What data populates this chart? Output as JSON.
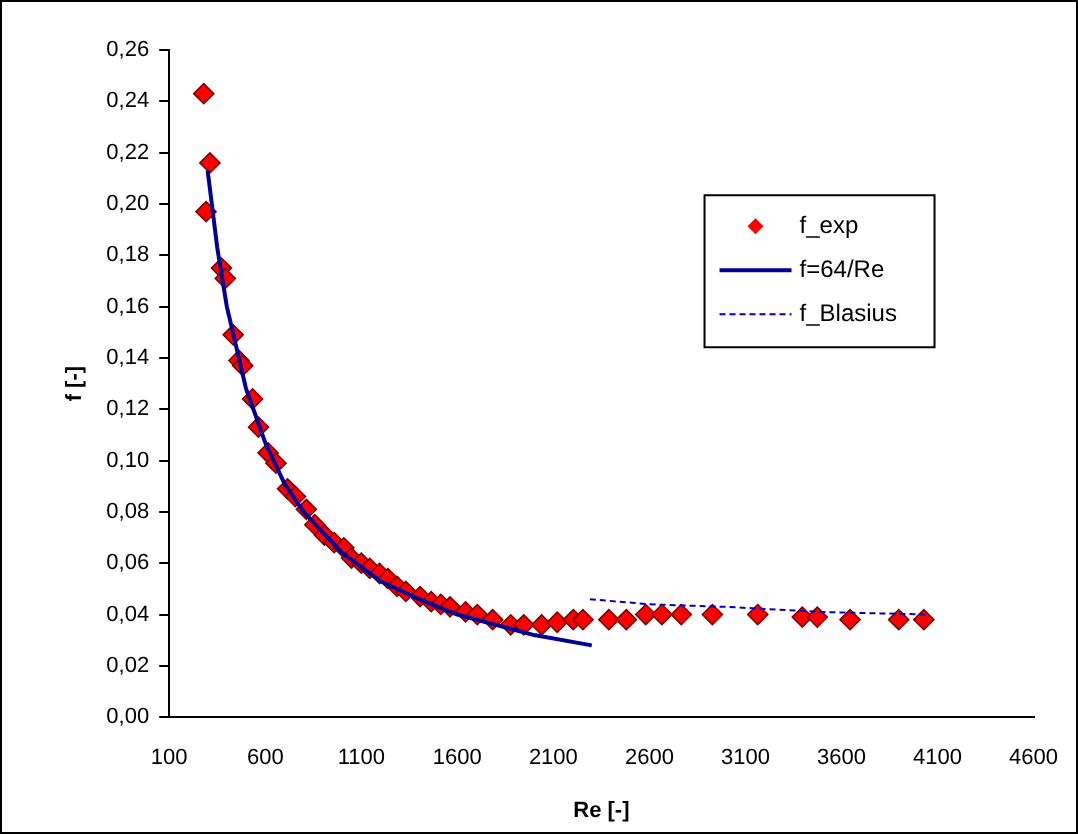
{
  "chart_data": {
    "type": "scatter",
    "xlabel": "Re [-]",
    "ylabel": "f [-]",
    "xlim": [
      100,
      4600
    ],
    "xticks": [
      100,
      600,
      1100,
      1600,
      2100,
      2600,
      3100,
      3600,
      4100,
      4600
    ],
    "ylim": [
      0,
      0.26
    ],
    "yticks": [
      {
        "value": 0,
        "label": "0,00"
      },
      {
        "value": 0.02,
        "label": "0,02"
      },
      {
        "value": 0.04,
        "label": "0,04"
      },
      {
        "value": 0.06,
        "label": "0,06"
      },
      {
        "value": 0.08,
        "label": "0,08"
      },
      {
        "value": 0.1,
        "label": "0,10"
      },
      {
        "value": 0.12,
        "label": "0,12"
      },
      {
        "value": 0.14,
        "label": "0,14"
      },
      {
        "value": 0.16,
        "label": "0,16"
      },
      {
        "value": 0.18,
        "label": "0,18"
      },
      {
        "value": 0.2,
        "label": "0,20"
      },
      {
        "value": 0.22,
        "label": "0,22"
      },
      {
        "value": 0.24,
        "label": "0,24"
      },
      {
        "value": 0.26,
        "label": "0,26"
      }
    ],
    "grid": false,
    "legend": "right",
    "series": [
      {
        "name": "f_exp",
        "type": "scatter",
        "marker": "diamond",
        "color": "#ff0000",
        "x": [
          280,
          292,
          312,
          372,
          392,
          433,
          463,
          483,
          534,
          565,
          615,
          656,
          716,
          757,
          814,
          858,
          908,
          959,
          1009,
          1049,
          1100,
          1144,
          1195,
          1239,
          1286,
          1332,
          1406,
          1464,
          1514,
          1562,
          1643,
          1704,
          1784,
          1878,
          1946,
          2039,
          2120,
          2204,
          2254,
          2389,
          2480,
          2581,
          2665,
          2766,
          2928,
          3164,
          3396,
          3474,
          3645,
          3898,
          4029
        ],
        "values": [
          0.243,
          0.197,
          0.216,
          0.175,
          0.171,
          0.149,
          0.139,
          0.137,
          0.124,
          0.113,
          0.103,
          0.099,
          0.089,
          0.086,
          0.081,
          0.075,
          0.071,
          0.068,
          0.066,
          0.062,
          0.06,
          0.058,
          0.056,
          0.054,
          0.051,
          0.049,
          0.047,
          0.045,
          0.044,
          0.043,
          0.041,
          0.04,
          0.038,
          0.036,
          0.036,
          0.036,
          0.037,
          0.038,
          0.038,
          0.038,
          0.038,
          0.04,
          0.04,
          0.04,
          0.04,
          0.04,
          0.039,
          0.039,
          0.038,
          0.038,
          0.038
        ]
      },
      {
        "name": "f=64/Re",
        "type": "line",
        "line_style": "solid",
        "marker": "none",
        "color": "#000099",
        "x": [
          300,
          350,
          400,
          500,
          600,
          700,
          800,
          1000,
          1200,
          1400,
          1600,
          1800,
          2000,
          2300
        ],
        "values": [
          0.213,
          0.183,
          0.16,
          0.128,
          0.107,
          0.091,
          0.08,
          0.064,
          0.053,
          0.046,
          0.04,
          0.036,
          0.032,
          0.028
        ]
      },
      {
        "name": "f_Blasius",
        "type": "line",
        "line_style": "dashed",
        "marker": "none",
        "color": "#0000cc",
        "x": [
          2290,
          2600,
          3000,
          3500,
          4050
        ],
        "values": [
          0.046,
          0.044,
          0.043,
          0.041,
          0.04
        ]
      }
    ]
  }
}
